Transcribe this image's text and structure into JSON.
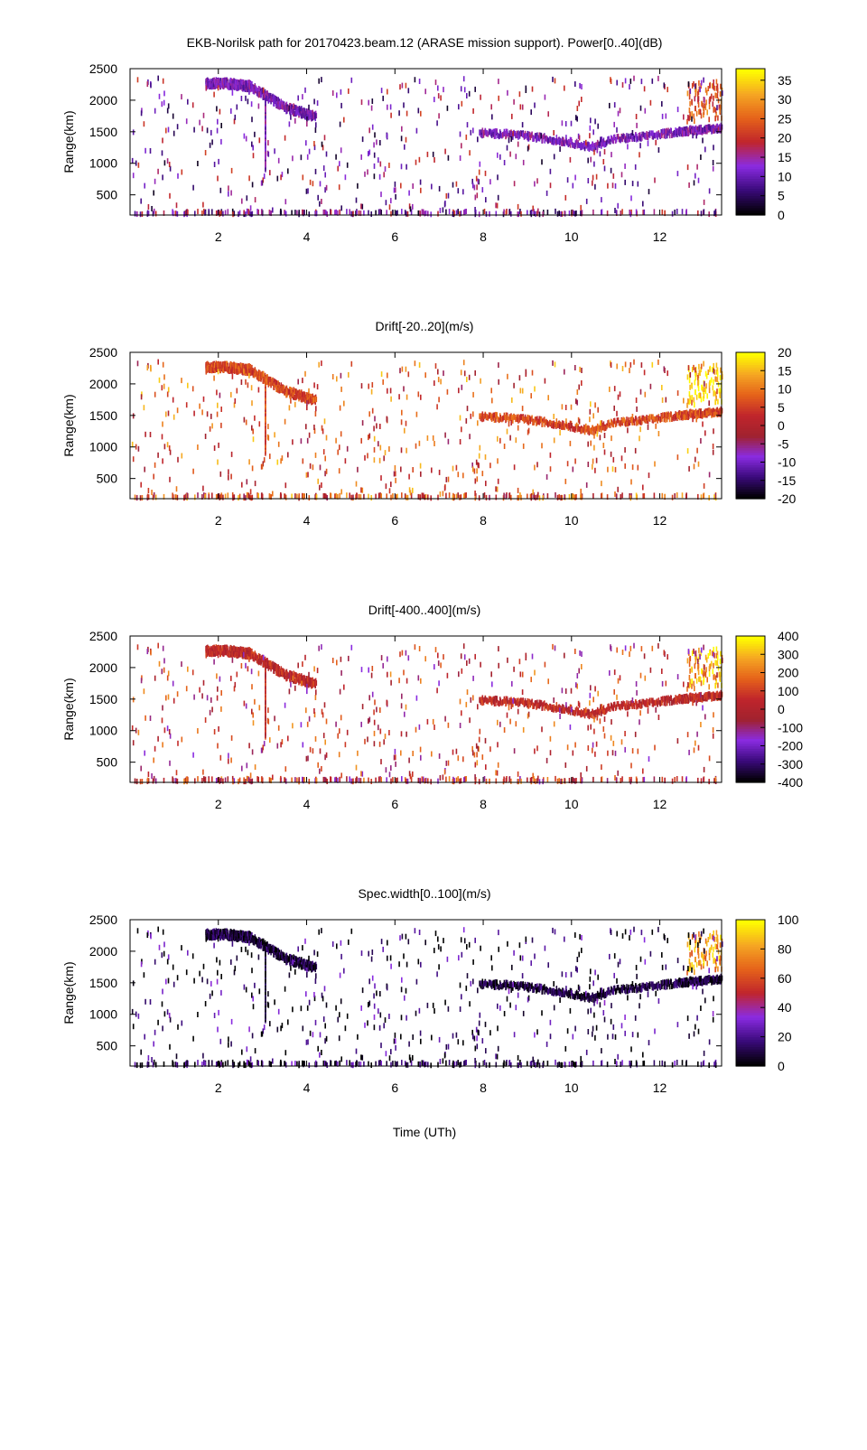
{
  "figure": {
    "title": "EKB-Norilsk path for 20170423.beam.12 (ARASE mission support). Power[0..40](dB)",
    "xlabel": "Time (UTh)",
    "ylabel": "Range(km)"
  },
  "chart_data": [
    {
      "type": "heatmap",
      "title": "EKB-Norilsk path for 20170423.beam.12 (ARASE mission support). Power[0..40](dB)",
      "xlabel": "",
      "ylabel": "Range(km)",
      "xlim": [
        0,
        13.4
      ],
      "ylim": [
        180,
        2500
      ],
      "xticks": [
        "2",
        "4",
        "6",
        "8",
        "10",
        "12"
      ],
      "yticks": [
        "500",
        "1000",
        "1500",
        "2000",
        "2500"
      ],
      "colorbar": {
        "range": [
          0,
          38
        ],
        "ticks": [
          "0",
          "5",
          "10",
          "15",
          "20",
          "25",
          "30",
          "35"
        ],
        "stops": [
          "#000000",
          "#3a0a7a",
          "#8a2be2",
          "#c0252c",
          "#e5621a",
          "#f5a623",
          "#ffff00"
        ]
      },
      "features": {
        "band_early": [
          [
            1.7,
            2270
          ],
          [
            2.2,
            2260
          ],
          [
            2.7,
            2220
          ],
          [
            3.1,
            2050
          ],
          [
            3.5,
            1880
          ],
          [
            3.9,
            1800
          ],
          [
            4.2,
            1740
          ]
        ],
        "band_late": [
          [
            7.9,
            1480
          ],
          [
            8.6,
            1460
          ],
          [
            9.3,
            1400
          ],
          [
            9.9,
            1340
          ],
          [
            10.4,
            1250
          ],
          [
            10.9,
            1380
          ],
          [
            11.6,
            1420
          ],
          [
            12.4,
            1500
          ],
          [
            13.4,
            1560
          ]
        ],
        "band_level": 12,
        "patch_level": 24
      }
    },
    {
      "type": "heatmap",
      "title": "Drift[-20..20](m/s)",
      "xlabel": "",
      "ylabel": "Range(km)",
      "xlim": [
        0,
        13.4
      ],
      "ylim": [
        180,
        2500
      ],
      "xticks": [
        "2",
        "4",
        "6",
        "8",
        "10",
        "12"
      ],
      "yticks": [
        "500",
        "1000",
        "1500",
        "2000",
        "2500"
      ],
      "colorbar": {
        "range": [
          -20,
          20
        ],
        "ticks": [
          "-20",
          "-15",
          "-10",
          "-5",
          "0",
          "5",
          "10",
          "15",
          "20"
        ],
        "stops": [
          "#000000",
          "#3a0a7a",
          "#8a2be2",
          "#a0222e",
          "#c0252c",
          "#e5621a",
          "#f5a623",
          "#ffff00"
        ]
      },
      "features": {
        "band_level": 6,
        "patch_level": 18
      }
    },
    {
      "type": "heatmap",
      "title": "Drift[-400..400](m/s)",
      "xlabel": "",
      "ylabel": "Range(km)",
      "xlim": [
        0,
        13.4
      ],
      "ylim": [
        180,
        2500
      ],
      "xticks": [
        "2",
        "4",
        "6",
        "8",
        "10",
        "12"
      ],
      "yticks": [
        "500",
        "1000",
        "1500",
        "2000",
        "2500"
      ],
      "colorbar": {
        "range": [
          -400,
          400
        ],
        "ticks": [
          "-400",
          "-300",
          "-200",
          "-100",
          "0",
          "100",
          "200",
          "300",
          "400"
        ],
        "stops": [
          "#000000",
          "#3a0a7a",
          "#8a2be2",
          "#a0222e",
          "#c0252c",
          "#e5621a",
          "#f5a623",
          "#ffff00"
        ]
      },
      "features": {
        "band_level": 40,
        "patch_level": 280
      }
    },
    {
      "type": "heatmap",
      "title": "Spec.width[0..100](m/s)",
      "xlabel": "Time (UTh)",
      "ylabel": "Range(km)",
      "xlim": [
        0,
        13.4
      ],
      "ylim": [
        180,
        2500
      ],
      "xticks": [
        "2",
        "4",
        "6",
        "8",
        "10",
        "12"
      ],
      "yticks": [
        "500",
        "1000",
        "1500",
        "2000",
        "2500"
      ],
      "colorbar": {
        "range": [
          0,
          100
        ],
        "ticks": [
          "0",
          "20",
          "40",
          "60",
          "80",
          "100"
        ],
        "stops": [
          "#000000",
          "#3a0a7a",
          "#8a2be2",
          "#c0252c",
          "#e5621a",
          "#f5a623",
          "#ffff00"
        ]
      },
      "features": {
        "band_level": 8,
        "patch_level": 80
      }
    }
  ]
}
